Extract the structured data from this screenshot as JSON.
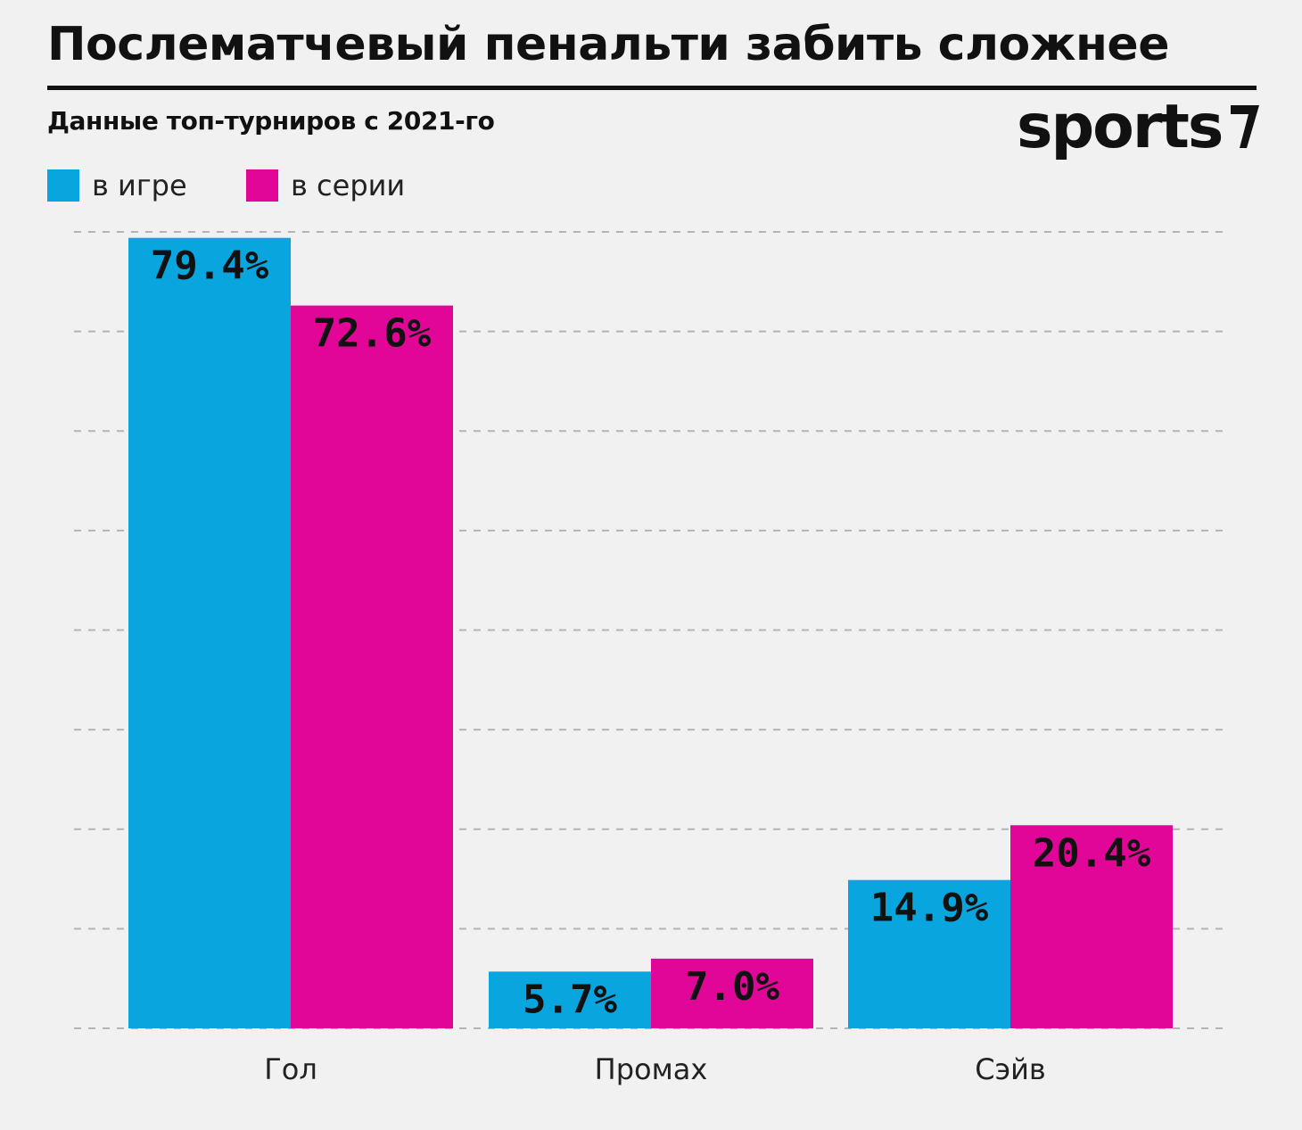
{
  "title": "Послематчевый пенальти забить сложнее",
  "subtitle": "Данные топ-турниров с 2021-го",
  "logo": {
    "text": "sports",
    "mark": "sports-logo-mark"
  },
  "legend": [
    {
      "label": "в игре",
      "color": "#08a5df"
    },
    {
      "label": "в серии",
      "color": "#e10697"
    }
  ],
  "chart_data": {
    "type": "bar",
    "categories": [
      "Гол",
      "Промах",
      "Сэйв"
    ],
    "series": [
      {
        "name": "в игре",
        "color": "#08a5df",
        "values": [
          79.4,
          5.7,
          14.9
        ],
        "labels": [
          "79.4%",
          "5.7%",
          "14.9%"
        ]
      },
      {
        "name": "в серии",
        "color": "#e10697",
        "values": [
          72.6,
          7.0,
          20.4
        ],
        "labels": [
          "72.6%",
          "7.0%",
          "20.4%"
        ]
      }
    ],
    "ylim": [
      0,
      80
    ],
    "grid": true,
    "legend_position": "top-left",
    "xlabel": "",
    "ylabel": ""
  }
}
